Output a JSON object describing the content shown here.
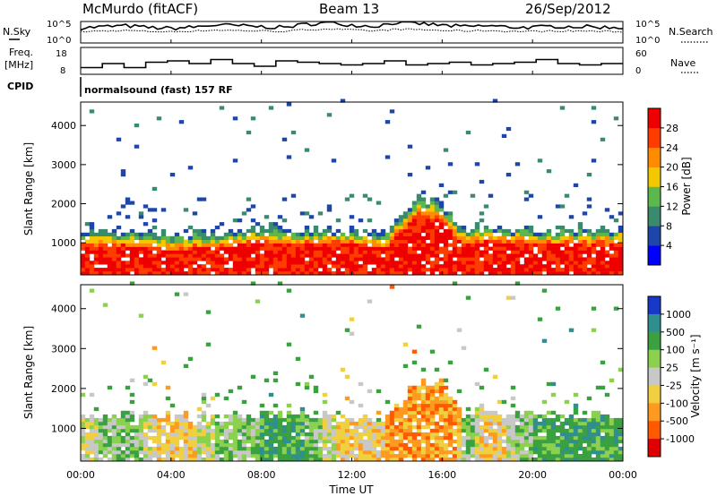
{
  "header": {
    "station": "McMurdo (fitACF)",
    "beam": "Beam 13",
    "date": "26/Sep/2012"
  },
  "noise_panel": {
    "left_label": "N.Sky",
    "right_label": "N.Search",
    "left_ticks": [
      "10^5",
      "10^0"
    ],
    "right_ticks": [
      "10^5",
      "10^0"
    ]
  },
  "freq_panel": {
    "left_label_line1": "Freq.",
    "left_label_line2": "[MHz]",
    "left_ticks": [
      "18",
      "8"
    ],
    "right_label": "Nave",
    "right_ticks": [
      "60",
      "0"
    ]
  },
  "cpid": {
    "label": "CPID",
    "mode": "normalsound (fast) 157 RF"
  },
  "time_axis": {
    "label": "Time UT",
    "ticks": [
      "00:00",
      "04:00",
      "08:00",
      "12:00",
      "16:00",
      "20:00",
      "00:00"
    ]
  },
  "range_axis": {
    "label": "Slant Range [km]",
    "ticks": [
      "1000",
      "2000",
      "3000",
      "4000"
    ]
  },
  "power_colorbar": {
    "label": "Power [dB]",
    "ticks": [
      "4",
      "8",
      "12",
      "16",
      "20",
      "24",
      "28"
    ],
    "colors": [
      "#0000ff",
      "#1e46aa",
      "#3a8a6e",
      "#5cb84c",
      "#f2c800",
      "#ff8c00",
      "#ff3c00",
      "#ee0000"
    ]
  },
  "velocity_colorbar": {
    "label": "Velocity [m s⁻¹]",
    "ticks": [
      "1000",
      "500",
      "100",
      "25",
      "-25",
      "-100",
      "-500",
      "-1000"
    ],
    "colors": [
      "#1838c8",
      "#2f8f8f",
      "#3aa040",
      "#8cd050",
      "#c8c8c8",
      "#f0d040",
      "#ff9a20",
      "#ff5a00",
      "#e00000"
    ]
  },
  "chart_data": [
    {
      "type": "line",
      "name": "noise",
      "x_range_hours": [
        0,
        24
      ],
      "sky_level_log10": [
        3.5,
        3.8,
        4.0,
        3.6,
        3.4,
        3.7,
        4.2,
        4.0,
        3.8,
        3.6,
        4.4,
        4.7,
        4.2,
        3.9,
        4.8,
        4.5,
        4.1,
        3.8,
        4.0,
        3.7,
        3.6,
        3.9,
        3.8,
        3.7,
        3.6
      ],
      "search_level_log10": [
        2.6,
        2.8,
        2.9,
        2.7,
        2.6,
        2.8,
        3.0,
        2.9,
        2.8,
        2.7,
        3.1,
        3.3,
        3.0,
        2.8,
        3.2,
        3.1,
        2.9,
        2.8,
        2.9,
        2.7,
        2.7,
        2.8,
        2.8,
        2.7,
        2.6
      ]
    },
    {
      "type": "line",
      "name": "frequency",
      "x_range_hours": [
        0,
        24
      ],
      "ylim": [
        8,
        18
      ],
      "freq_mhz": [
        10.5,
        12,
        10.5,
        12.5,
        13,
        12,
        13.5,
        12,
        11,
        13,
        12.5,
        12,
        11.5,
        12,
        13,
        11.5,
        12,
        12.5,
        11.5,
        12,
        12.5,
        13.5,
        12,
        11.5,
        12
      ],
      "nave_ylim": [
        0,
        60
      ]
    },
    {
      "type": "heatmap",
      "name": "power",
      "x_range_hours": [
        0,
        24
      ],
      "ylim_km": [
        180,
        4600
      ],
      "units": "dB",
      "clim": [
        0,
        32
      ],
      "times_hours": [
        0,
        2,
        4,
        6,
        8,
        10,
        12,
        13.5,
        14.5,
        15,
        16,
        17,
        18,
        20,
        22,
        24
      ],
      "echo_top_km": [
        1250,
        1300,
        1250,
        1250,
        1300,
        1300,
        1250,
        1200,
        1900,
        2100,
        2000,
        1300,
        1350,
        1300,
        1300,
        1300
      ],
      "core_top_km": [
        850,
        900,
        750,
        850,
        950,
        900,
        950,
        800,
        1400,
        1700,
        1500,
        900,
        1000,
        950,
        900,
        900
      ]
    },
    {
      "type": "heatmap",
      "name": "velocity",
      "x_range_hours": [
        0,
        24
      ],
      "ylim_km": [
        180,
        4600
      ],
      "units": "m/s",
      "clim": [
        -1000,
        1000
      ],
      "times_hours": [
        0,
        2,
        4,
        6,
        8,
        10,
        12,
        13.5,
        14.5,
        15,
        16,
        17,
        18,
        20,
        22,
        24
      ],
      "echo_top_km": [
        1250,
        1300,
        1250,
        1250,
        1300,
        1300,
        1250,
        1200,
        1900,
        2150,
        2050,
        1300,
        1350,
        1300,
        1300,
        1300
      ],
      "dominant_velocity": [
        -25,
        100,
        -100,
        25,
        100,
        100,
        -100,
        -100,
        -500,
        -500,
        -500,
        100,
        -100,
        100,
        100,
        100
      ]
    }
  ]
}
